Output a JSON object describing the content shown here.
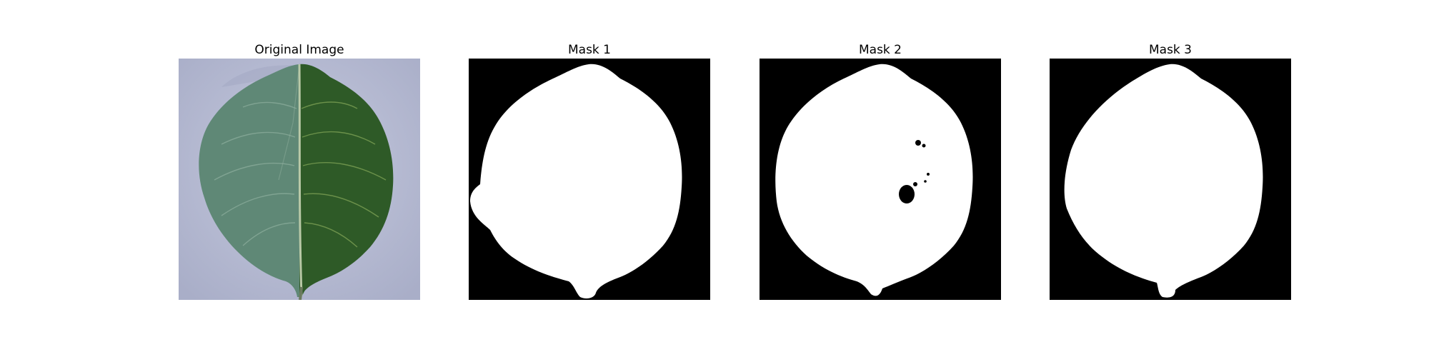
{
  "figure": {
    "panels": [
      {
        "title": "Original Image"
      },
      {
        "title": "Mask 1"
      },
      {
        "title": "Mask 2"
      },
      {
        "title": "Mask 3"
      }
    ]
  },
  "colors": {
    "background": "#b8bcd4",
    "leaf_dark": "#2f5a2a",
    "leaf_light": "#6a8f7d",
    "mask_bg": "#000000",
    "mask_fg": "#ffffff"
  }
}
